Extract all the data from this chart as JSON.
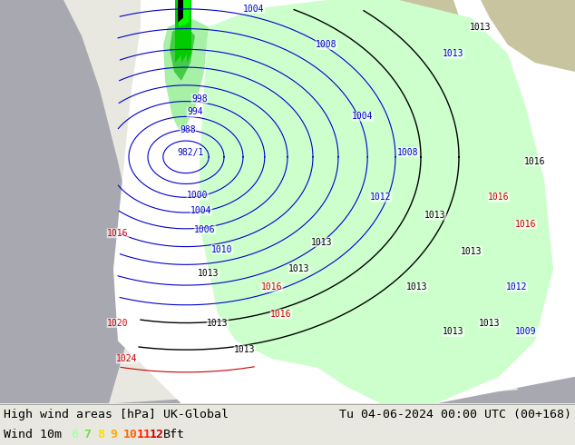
{
  "title_left": "High wind areas [hPa] UK-Global",
  "title_right": "Tu 04-06-2024 00:00 UTC (00+168)",
  "wind_label": "Wind 10m",
  "bft_label": "Bft",
  "bft_numbers": [
    "6",
    "7",
    "8",
    "9",
    "10",
    "11",
    "12"
  ],
  "bft_colors": [
    "#aaffaa",
    "#77dd44",
    "#ffdd00",
    "#ffaa00",
    "#ff6600",
    "#ff2200",
    "#cc0000"
  ],
  "text_color": "#000000",
  "footer_bg": "#e8e8e0",
  "figsize": [
    6.34,
    4.9
  ],
  "dpi": 100,
  "land_color": "#c8c4a0",
  "ocean_color": "#a8a8b0",
  "domain_color": "#ffffff",
  "green_light": "#ccffcc",
  "green_mid": "#90ee90",
  "green_strong": "#44cc44",
  "green_vstrong": "#00cc00",
  "green_extreme": "#00ff00",
  "isobar_blue": "#0000cc",
  "isobar_red": "#cc0000",
  "isobar_black": "#000000"
}
